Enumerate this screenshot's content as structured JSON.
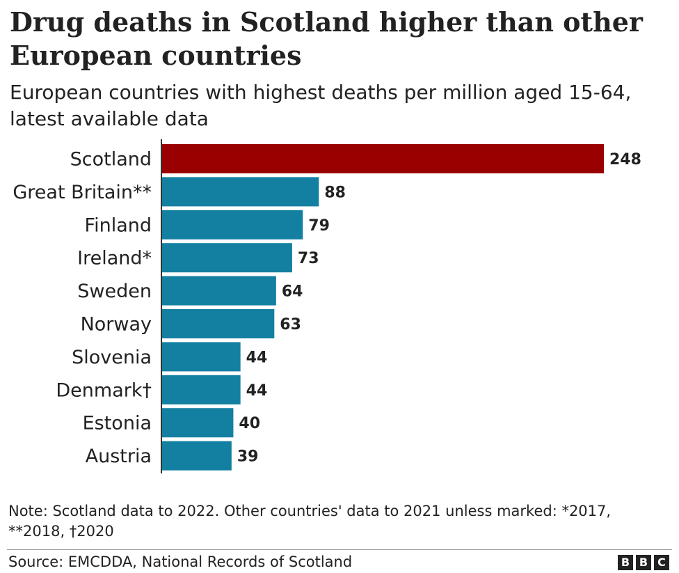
{
  "chart_data": {
    "type": "bar",
    "orientation": "horizontal",
    "title": "Drug deaths in Scotland higher than other European countries",
    "subtitle": "European countries with highest deaths per million aged 15-64, latest available data",
    "categories": [
      "Scotland",
      "Great Britain**",
      "Finland",
      "Ireland*",
      "Sweden",
      "Norway",
      "Slovenia",
      "Denmark†",
      "Estonia",
      "Austria"
    ],
    "values": [
      248,
      88,
      79,
      73,
      64,
      63,
      44,
      44,
      40,
      39
    ],
    "colors": [
      "#990000",
      "#1380a1",
      "#1380a1",
      "#1380a1",
      "#1380a1",
      "#1380a1",
      "#1380a1",
      "#1380a1",
      "#1380a1",
      "#1380a1"
    ],
    "note": "Note: Scotland data to 2022. Other countries' data to 2021 unless marked: *2017, **2018, †2020",
    "source": "Source: EMCDDA, National Records of Scotland",
    "logo": [
      "B",
      "B",
      "C"
    ]
  }
}
